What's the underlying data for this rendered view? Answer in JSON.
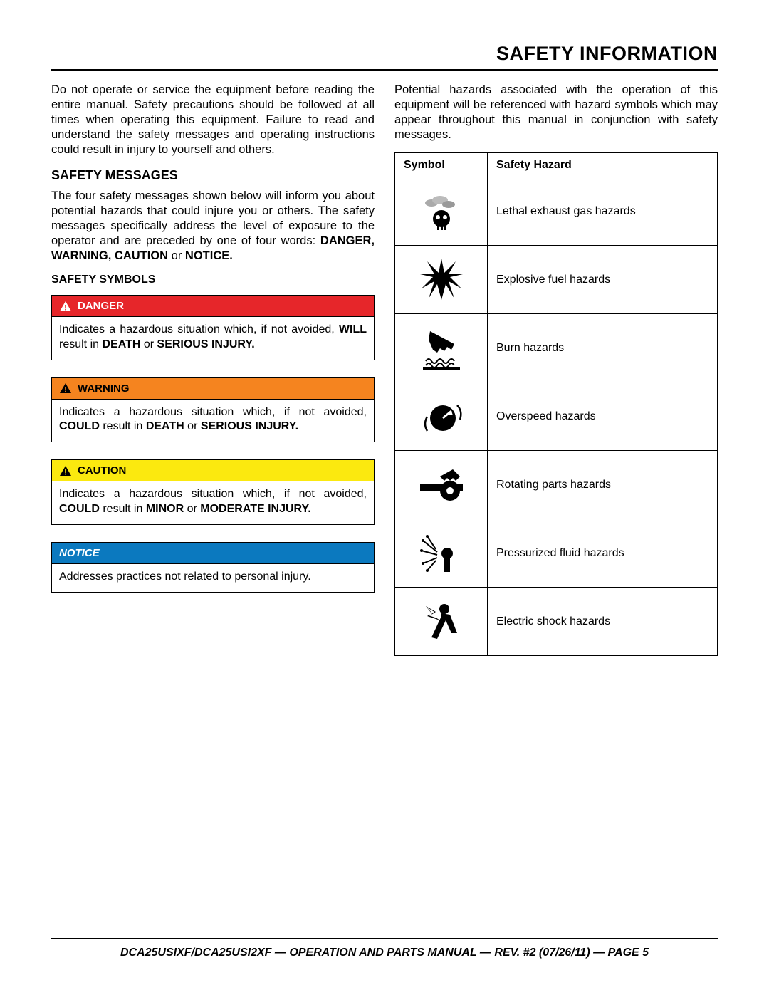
{
  "title": "SAFETY INFORMATION",
  "intro_left": "Do not operate or service the equipment before reading the entire manual. Safety precautions should be followed at all times when operating this equipment. Failure to read and understand the safety messages and operating instructions could result in injury to yourself and others.",
  "safety_messages": {
    "heading": "SAFETY MESSAGES",
    "para": "The four safety messages shown below will inform you about potential hazards that could injure you or others. The safety messages specifically address the level of exposure to the operator and are preceded by one of four words: ",
    "words_bold_a": "DANGER, WARNING, CAUTION",
    "words_or": " or ",
    "words_bold_b": "NOTICE."
  },
  "symbols_heading": "SAFETY SYMBOLS",
  "alerts": [
    {
      "label": "DANGER",
      "bg": "#e6262a",
      "fg": "#ffffff",
      "tri_fill": "#ffffff",
      "tri_mark": "#e6262a",
      "italic": false,
      "body_lead": "Indicates a hazardous situation which, if not avoided, ",
      "body_bold_a": "WILL",
      "body_mid": " result in ",
      "body_bold_b": "DEATH",
      "body_or": " or ",
      "body_bold_c": "SERIOUS INJURY."
    },
    {
      "label": "WARNING",
      "bg": "#f5841f",
      "fg": "#000000",
      "tri_fill": "#000000",
      "tri_mark": "#f5841f",
      "italic": false,
      "body_lead": "Indicates a hazardous situation which, if not avoided, ",
      "body_bold_a": "COULD",
      "body_mid": " result in ",
      "body_bold_b": "DEATH",
      "body_or": " or ",
      "body_bold_c": "SERIOUS INJURY."
    },
    {
      "label": "CAUTION",
      "bg": "#fbe90f",
      "fg": "#000000",
      "tri_fill": "#000000",
      "tri_mark": "#fbe90f",
      "italic": false,
      "body_lead": "Indicates a hazardous situation which, if not avoided, ",
      "body_bold_a": "COULD",
      "body_mid": " result in ",
      "body_bold_b": "MINOR",
      "body_or": " or ",
      "body_bold_c": "MODERATE INJURY."
    },
    {
      "label": "NOTICE",
      "bg": "#0b79bf",
      "fg": "#ffffff",
      "tri_fill": "",
      "tri_mark": "",
      "italic": true,
      "body_lead": "Addresses practices not related to personal injury.",
      "body_bold_a": "",
      "body_mid": "",
      "body_bold_b": "",
      "body_or": "",
      "body_bold_c": ""
    }
  ],
  "intro_right": "Potential hazards associated with the operation of this equipment will be referenced with hazard symbols which may appear throughout this manual in conjunction with safety messages.",
  "table": {
    "col1": "Symbol",
    "col2": "Safety Hazard",
    "rows": [
      {
        "hazard": "Lethal exhaust gas hazards"
      },
      {
        "hazard": "Explosive fuel hazards"
      },
      {
        "hazard": "Burn hazards"
      },
      {
        "hazard": "Overspeed hazards"
      },
      {
        "hazard": "Rotating parts hazards"
      },
      {
        "hazard": "Pressurized fluid hazards"
      },
      {
        "hazard": "Electric shock hazards"
      }
    ]
  },
  "footer": "DCA25USIXF/DCA25USI2XF — OPERATION AND PARTS MANUAL — REV. #2 (07/26/11) — PAGE 5"
}
